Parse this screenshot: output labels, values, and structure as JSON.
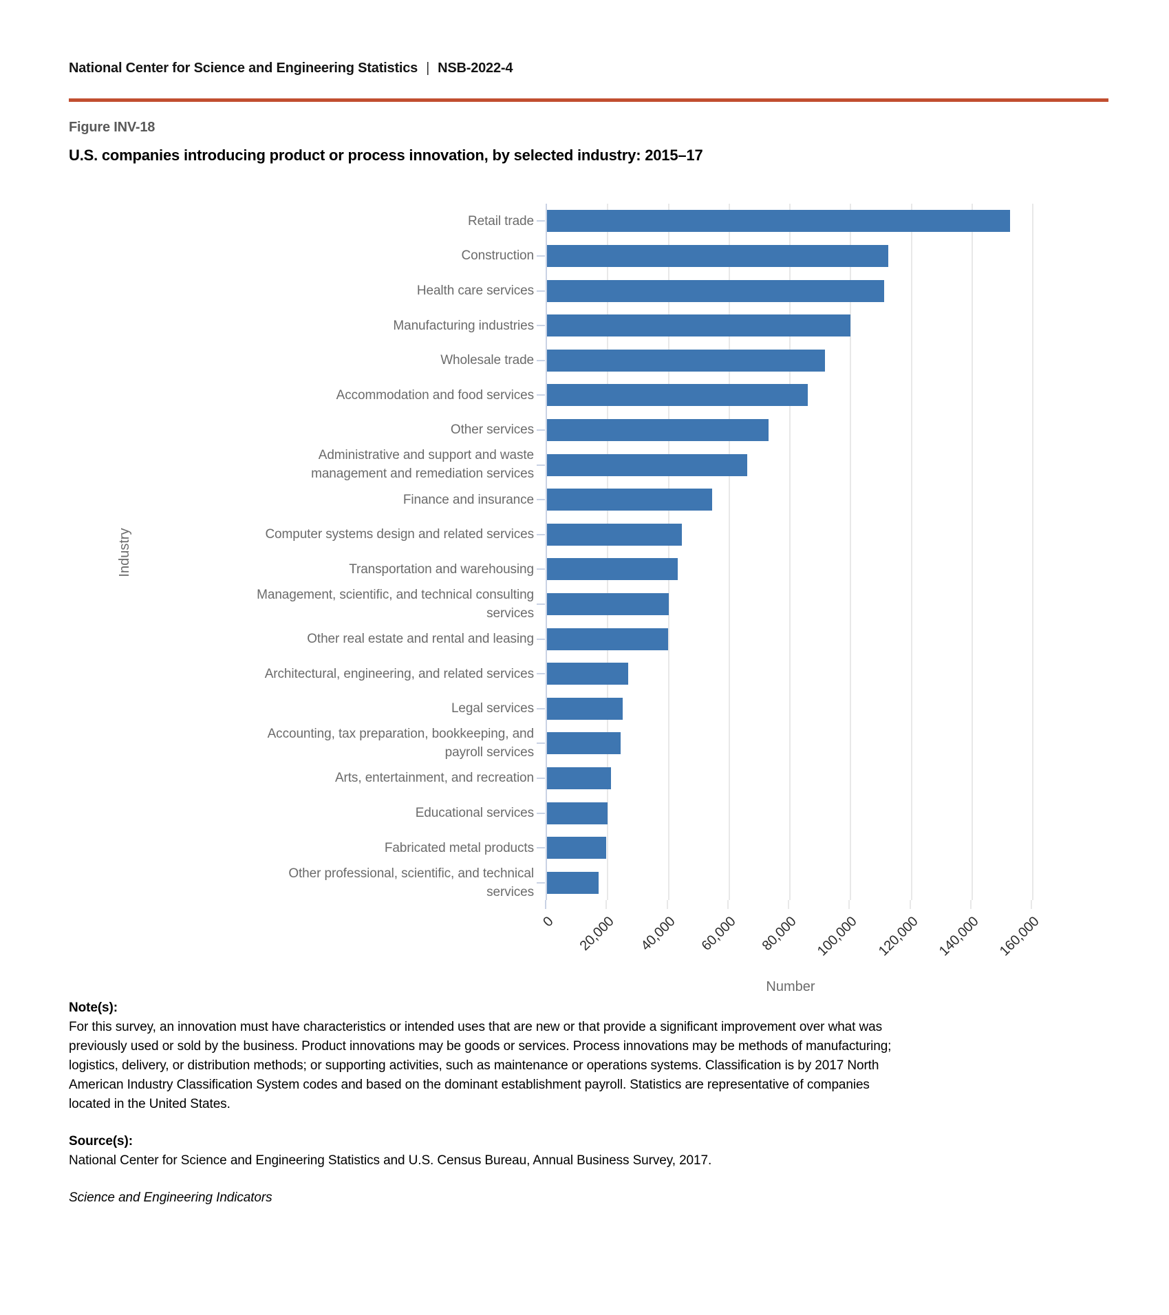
{
  "header": {
    "agency": "National Center for Science and Engineering Statistics",
    "separator": "|",
    "report_id": "NSB-2022-4",
    "figure_label": "Figure INV-18",
    "title": "U.S. companies introducing product or process innovation, by selected industry: 2015–17"
  },
  "chart_data": {
    "type": "bar",
    "orientation": "horizontal",
    "title": "U.S. companies introducing product or process innovation, by selected industry: 2015–17",
    "xlabel": "Number",
    "ylabel": "Industry",
    "xlim": [
      0,
      161400
    ],
    "grid": true,
    "bar_color": "#3e76b1",
    "x_ticks": [
      0,
      20000,
      40000,
      60000,
      80000,
      100000,
      120000,
      140000,
      160000
    ],
    "x_tick_labels": [
      "0",
      "20,000",
      "40,000",
      "60,000",
      "80,000",
      "100,000",
      "120,000",
      "140,000",
      "160,000"
    ],
    "categories": [
      "Retail trade",
      "Construction",
      "Health care services",
      "Manufacturing industries",
      "Wholesale trade",
      "Accommodation and food services",
      "Other services",
      "Administrative and support and waste\nmanagement and remediation services",
      "Finance and insurance",
      "Computer systems design and related services",
      "Transportation and warehousing",
      "Management, scientific, and technical consulting\nservices",
      "Other real estate and rental and leasing",
      "Architectural, engineering, and related services",
      "Legal services",
      "Accounting, tax preparation, bookkeeping, and\npayroll services",
      "Arts, entertainment, and recreation",
      "Educational services",
      "Fabricated metal products",
      "Other professional, scientific, and technical\nservices"
    ],
    "values": [
      152500,
      112500,
      111000,
      100000,
      91500,
      86000,
      73000,
      66000,
      54500,
      44500,
      43000,
      40000,
      39800,
      26700,
      25000,
      24300,
      21000,
      20000,
      19500,
      17000
    ]
  },
  "notes": {
    "heading": "Note(s):",
    "body": "For this survey, an innovation must have characteristics or intended uses that are new or that provide a significant improvement over what was\npreviously used or sold by the business. Product innovations may be goods or services. Process innovations may be methods of manufacturing;\nlogistics, delivery, or distribution methods; or supporting activities, such as maintenance or operations systems. Classification is by 2017 North\nAmerican Industry Classification System codes and based on the dominant establishment payroll. Statistics are representative of companies\nlocated in the United States.",
    "source_heading": "Source(s):",
    "source_body": "National Center for Science and Engineering Statistics and U.S. Census Bureau, Annual Business Survey, 2017.",
    "publication": "Science and Engineering Indicators"
  },
  "colors": {
    "bar": "#3e76b1",
    "rule": "#c14e30",
    "axis_line": "#c9d2e4",
    "gridline": "#e8e8e8",
    "category_label": "#6b6b6b",
    "tick_label": "#2b2b2b"
  }
}
